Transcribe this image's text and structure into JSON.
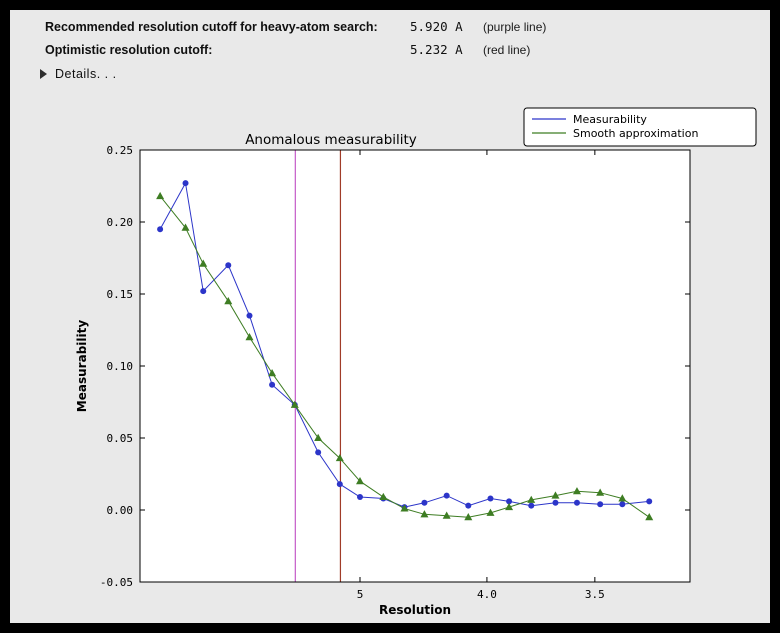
{
  "header": {
    "rows": [
      {
        "label": "Recommended resolution cutoff for heavy-atom search:",
        "value": "5.920 A",
        "note": "(purple line)"
      },
      {
        "label": "Optimistic resolution cutoff:",
        "value": "5.232 A",
        "note": "(red line)"
      }
    ],
    "details_label": "Details. . ."
  },
  "chart_data": {
    "type": "line",
    "title": "Anomalous measurability",
    "xlabel": "Resolution",
    "ylabel": "Measurability",
    "xscale": "inverse_d_squared",
    "xlim_inv_d2": [
      0.001,
      0.0985
    ],
    "ylim": [
      -0.05,
      0.25
    ],
    "grid": false,
    "legend_position": "upper right",
    "yticks": [
      {
        "v": -0.05,
        "label": "-0.05"
      },
      {
        "v": 0.0,
        "label": "0.00"
      },
      {
        "v": 0.05,
        "label": "0.05"
      },
      {
        "v": 0.1,
        "label": "0.10"
      },
      {
        "v": 0.15,
        "label": "0.15"
      },
      {
        "v": 0.2,
        "label": "0.20"
      },
      {
        "v": 0.25,
        "label": "0.25"
      }
    ],
    "xticks": [
      {
        "d": 5.0,
        "label": "5"
      },
      {
        "d": 4.0,
        "label": "4.0"
      },
      {
        "d": 3.5,
        "label": "3.5"
      }
    ],
    "resolution_A": [
      14.8,
      10.5,
      9.05,
      7.75,
      7.0,
      6.4,
      5.93,
      5.54,
      5.24,
      5.0,
      4.76,
      4.57,
      4.41,
      4.25,
      4.11,
      3.98,
      3.88,
      3.77,
      3.66,
      3.57,
      3.48,
      3.4,
      3.31
    ],
    "series": [
      {
        "name": "Measurability",
        "color": "#2c35c9",
        "marker": "circle",
        "values": [
          0.195,
          0.227,
          0.152,
          0.17,
          0.135,
          0.087,
          0.073,
          0.04,
          0.018,
          0.009,
          0.008,
          0.002,
          0.005,
          0.01,
          0.003,
          0.008,
          0.006,
          0.003,
          0.005,
          0.005,
          0.004,
          0.004,
          0.006
        ]
      },
      {
        "name": "Smooth approximation",
        "color": "#3e7d23",
        "marker": "triangle",
        "values": [
          0.218,
          0.196,
          0.171,
          0.145,
          0.12,
          0.095,
          0.073,
          0.05,
          0.036,
          0.02,
          0.009,
          0.001,
          -0.003,
          -0.004,
          -0.005,
          -0.002,
          0.002,
          0.007,
          0.01,
          0.013,
          0.012,
          0.008,
          -0.005
        ]
      }
    ],
    "vlines": [
      {
        "d": 5.92,
        "color": "#c45ac8",
        "name": "purple-cutoff-line"
      },
      {
        "d": 5.232,
        "color": "#a03c28",
        "name": "red-cutoff-line"
      }
    ]
  },
  "colors": {
    "page_bg": "#000000",
    "panel_bg": "#e9e9e9",
    "plot_bg": "#ffffff",
    "axis": "#000000"
  }
}
